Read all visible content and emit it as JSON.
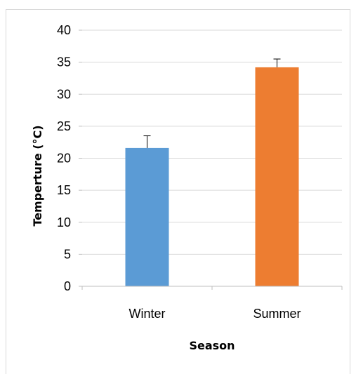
{
  "chart_data": {
    "type": "bar",
    "categories": [
      "Winter",
      "Summer"
    ],
    "values": [
      21.6,
      34.2
    ],
    "errors": [
      1.9,
      1.3
    ],
    "colors": [
      "#5b9bd5",
      "#ed7d31"
    ],
    "xlabel": "Season",
    "ylabel": "Temperture (°C)",
    "ylim": [
      0,
      40
    ],
    "yticks": [
      0,
      5,
      10,
      15,
      20,
      25,
      30,
      35,
      40
    ],
    "grid": true,
    "legend": "none"
  }
}
